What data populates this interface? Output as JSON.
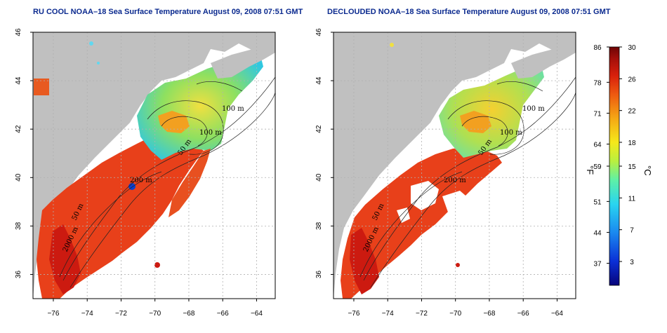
{
  "panels": [
    {
      "id": "ru-cool",
      "title": "RU COOL NOAA–18 Sea Surface Temperature August 09, 2008 07:51 GMT",
      "contour_labels": [
        "100 m",
        "100 m",
        "50 m",
        "200 m",
        "50 m",
        "2000 m"
      ]
    },
    {
      "id": "declouded",
      "title": "DECLOUDED NOAA–18 Sea Surface Temperature August 09, 2008 07:51 GMT",
      "contour_labels": [
        "100 m",
        "100 m",
        "50 m",
        "200 m",
        "50 m",
        "2000 m"
      ]
    }
  ],
  "map_axes": {
    "longitude_ticks": [
      "−76",
      "−74",
      "−72",
      "−70",
      "−68",
      "−66",
      "−64"
    ],
    "latitude_ticks": [
      "46",
      "44",
      "42",
      "40",
      "38",
      "36"
    ],
    "lon_range": [
      -77.2,
      -62.9
    ],
    "lat_range": [
      35.0,
      46.0
    ],
    "grid": true
  },
  "colorbar": {
    "fahrenheit_label": "°F",
    "celsius_label": "°C",
    "fahrenheit_ticks": [
      "86",
      "78",
      "71",
      "64",
      "59",
      "51",
      "44",
      "37"
    ],
    "celsius_ticks": [
      "30",
      "26",
      "22",
      "18",
      "15",
      "11",
      "7",
      "3"
    ],
    "colors": [
      "#08047a",
      "#0a2fd6",
      "#1a88f0",
      "#29d4f0",
      "#5df0a8",
      "#b8f040",
      "#f5e81a",
      "#f5a814",
      "#ee5a10",
      "#d8200c",
      "#a5100a",
      "#6e0505"
    ],
    "celsius_range": [
      0,
      30
    ]
  },
  "colors": {
    "title": "#0b2a8f",
    "land": "#c0c0c0",
    "no_data": "#ffffff",
    "warm_sst": "#e8401a",
    "cool_sst": "#40d8b0"
  }
}
